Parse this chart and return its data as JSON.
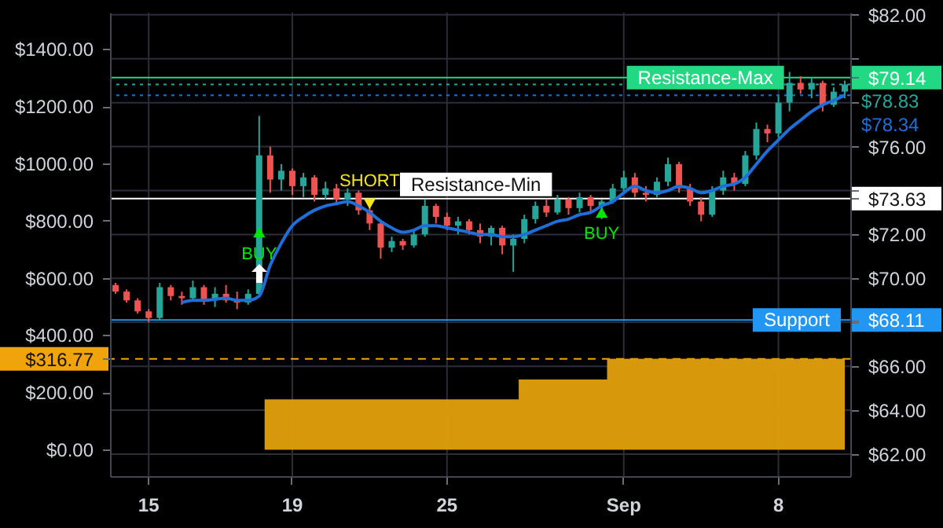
{
  "chart_data": {
    "type": "candlestick",
    "categories": [
      null,
      null,
      null,
      "15",
      null,
      null,
      null,
      null,
      null,
      null,
      null,
      null,
      null,
      null,
      null,
      null,
      "19",
      null,
      null,
      null,
      null,
      null,
      null,
      null,
      null,
      null,
      null,
      null,
      null,
      null,
      "25",
      null,
      null,
      null,
      null,
      null,
      null,
      null,
      null,
      null,
      null,
      null,
      null,
      null,
      null,
      null,
      "Sep",
      null,
      null,
      null,
      null,
      null,
      null,
      null,
      null,
      null,
      null,
      null,
      null,
      null,
      "8",
      null,
      null,
      null,
      null,
      null,
      null
    ],
    "ohlc": [
      [
        69.7,
        69.8,
        69.3,
        69.4
      ],
      [
        69.4,
        69.5,
        68.9,
        69.0
      ],
      [
        69.0,
        69.1,
        68.4,
        68.5
      ],
      [
        68.5,
        68.6,
        68.0,
        68.2
      ],
      [
        68.2,
        69.8,
        68.1,
        69.6
      ],
      [
        69.6,
        69.7,
        69.0,
        69.2
      ],
      [
        69.2,
        69.4,
        68.8,
        69.1
      ],
      [
        69.1,
        69.9,
        69.0,
        69.6
      ],
      [
        69.6,
        69.7,
        68.8,
        69.0
      ],
      [
        69.0,
        69.6,
        68.7,
        69.3
      ],
      [
        69.3,
        69.7,
        68.9,
        69.0
      ],
      [
        69.0,
        69.4,
        68.6,
        68.9
      ],
      [
        68.9,
        69.5,
        68.8,
        69.3
      ],
      [
        69.3,
        77.4,
        69.2,
        75.6
      ],
      [
        75.6,
        76.0,
        73.9,
        74.5
      ],
      [
        74.5,
        75.2,
        74.0,
        74.9
      ],
      [
        74.9,
        75.0,
        73.8,
        74.2
      ],
      [
        74.2,
        74.8,
        73.7,
        74.6
      ],
      [
        74.6,
        74.7,
        73.5,
        73.8
      ],
      [
        73.8,
        74.4,
        73.6,
        74.1
      ],
      [
        74.1,
        74.3,
        73.4,
        73.6
      ],
      [
        73.6,
        74.1,
        73.3,
        73.9
      ],
      [
        73.9,
        74.0,
        72.9,
        73.1
      ],
      [
        73.1,
        73.3,
        72.2,
        72.5
      ],
      [
        72.5,
        72.6,
        70.9,
        71.4
      ],
      [
        71.4,
        71.9,
        71.2,
        71.7
      ],
      [
        71.7,
        71.8,
        71.3,
        71.5
      ],
      [
        71.5,
        72.2,
        71.4,
        72.0
      ],
      [
        72.0,
        73.6,
        71.9,
        73.3
      ],
      [
        73.3,
        73.4,
        72.5,
        72.8
      ],
      [
        72.8,
        73.0,
        72.2,
        72.4
      ],
      [
        72.4,
        72.8,
        72.0,
        72.6
      ],
      [
        72.6,
        72.7,
        72.0,
        72.2
      ],
      [
        72.2,
        72.5,
        71.6,
        71.9
      ],
      [
        71.9,
        72.4,
        71.5,
        72.3
      ],
      [
        72.3,
        72.4,
        71.1,
        71.5
      ],
      [
        71.5,
        72.0,
        70.3,
        71.8
      ],
      [
        71.8,
        72.9,
        71.6,
        72.7
      ],
      [
        72.7,
        73.5,
        72.5,
        73.3
      ],
      [
        73.3,
        73.6,
        72.8,
        73.0
      ],
      [
        73.0,
        73.8,
        72.9,
        73.6
      ],
      [
        73.6,
        73.7,
        72.9,
        73.2
      ],
      [
        73.2,
        73.9,
        73.0,
        73.7
      ],
      [
        73.7,
        73.8,
        73.0,
        73.3
      ],
      [
        73.3,
        73.6,
        72.7,
        73.5
      ],
      [
        73.5,
        74.3,
        73.4,
        74.1
      ],
      [
        74.1,
        74.9,
        73.9,
        74.6
      ],
      [
        74.6,
        74.8,
        73.7,
        73.9
      ],
      [
        73.9,
        74.2,
        73.5,
        73.8
      ],
      [
        73.8,
        74.6,
        73.7,
        74.4
      ],
      [
        74.4,
        75.5,
        74.2,
        75.2
      ],
      [
        75.2,
        75.3,
        73.9,
        74.1
      ],
      [
        74.1,
        74.3,
        73.3,
        73.5
      ],
      [
        73.5,
        73.7,
        72.6,
        72.9
      ],
      [
        72.9,
        74.2,
        72.8,
        74.0
      ],
      [
        74.0,
        74.9,
        73.8,
        74.6
      ],
      [
        74.6,
        74.8,
        74.0,
        74.3
      ],
      [
        74.3,
        75.8,
        74.2,
        75.6
      ],
      [
        75.6,
        77.1,
        75.4,
        76.8
      ],
      [
        76.8,
        77.0,
        76.2,
        76.6
      ],
      [
        76.6,
        78.3,
        76.4,
        78.0
      ],
      [
        78.0,
        79.4,
        77.6,
        78.9
      ],
      [
        78.9,
        79.2,
        78.4,
        78.6
      ],
      [
        78.6,
        79.1,
        78.2,
        78.9
      ],
      [
        78.9,
        79.0,
        77.6,
        77.9
      ],
      [
        77.9,
        78.7,
        77.8,
        78.5
      ],
      [
        78.5,
        79.0,
        78.2,
        78.83
      ]
    ],
    "series": [
      {
        "type": "area",
        "axis": "y2",
        "color": "#d99a0b",
        "values": [
          0,
          0,
          0,
          0,
          0,
          0,
          0,
          0,
          0,
          0,
          0,
          0,
          0,
          0,
          175,
          175,
          175,
          175,
          175,
          175,
          175,
          175,
          175,
          175,
          175,
          175,
          175,
          175,
          175,
          175,
          175,
          175,
          175,
          175,
          175,
          175,
          175,
          245,
          245,
          245,
          245,
          245,
          245,
          245,
          245,
          316.77,
          316.77,
          316.77,
          316.77,
          316.77,
          316.77,
          316.77,
          316.77,
          316.77,
          316.77,
          316.77,
          316.77,
          316.77,
          316.77,
          316.77,
          316.77,
          316.77,
          316.77,
          316.77,
          316.77,
          316.77,
          316.77
        ]
      },
      {
        "type": "line",
        "color": "#1e6fd9",
        "values": [
          null,
          null,
          null,
          null,
          null,
          null,
          68.9,
          69.0,
          69.0,
          69.05,
          69.1,
          69.0,
          69.0,
          69.2,
          70.6,
          71.6,
          72.4,
          72.8,
          73.1,
          73.3,
          73.4,
          73.5,
          73.3,
          73.0,
          72.6,
          72.3,
          72.1,
          72.2,
          72.4,
          72.4,
          72.3,
          72.2,
          72.1,
          72.0,
          72.0,
          71.9,
          71.9,
          72.0,
          72.2,
          72.4,
          72.6,
          72.7,
          72.9,
          73.0,
          73.3,
          73.5,
          73.9,
          74.2,
          74.0,
          73.9,
          74.0,
          74.2,
          74.1,
          73.9,
          74.0,
          74.2,
          74.3,
          74.6,
          75.2,
          75.8,
          76.3,
          76.8,
          77.2,
          77.6,
          77.9,
          78.1,
          78.34
        ]
      },
      {
        "type": "scatter",
        "color": "#00e600",
        "marker": "triangle",
        "values": [
          null,
          null,
          null,
          null,
          null,
          null,
          null,
          null,
          null,
          null,
          null,
          null,
          null,
          72.1,
          null,
          null,
          null,
          null,
          null,
          null,
          null,
          null,
          null,
          null,
          null,
          null,
          null,
          null,
          null,
          null,
          null,
          null,
          null,
          null,
          null,
          null,
          null,
          null,
          null,
          null,
          null,
          null,
          null,
          null,
          73.0,
          null,
          null,
          null,
          null,
          null,
          null,
          null,
          null,
          null,
          null,
          null,
          null,
          null,
          null,
          null,
          null,
          null,
          null,
          null,
          null,
          null,
          null
        ],
        "value_labels": [
          null,
          null,
          null,
          null,
          null,
          null,
          null,
          null,
          null,
          null,
          null,
          null,
          null,
          "BUY",
          null,
          null,
          null,
          null,
          null,
          null,
          null,
          null,
          null,
          null,
          null,
          null,
          null,
          null,
          null,
          null,
          null,
          null,
          null,
          null,
          null,
          null,
          null,
          null,
          null,
          null,
          null,
          null,
          null,
          null,
          "BUY",
          null,
          null,
          null,
          null,
          null,
          null,
          null,
          null,
          null,
          null,
          null,
          null,
          null,
          null,
          null,
          null,
          null,
          null,
          null,
          null,
          null,
          null
        ]
      },
      {
        "type": "scatter",
        "color": "#f5e61b",
        "marker": "triangle",
        "values": [
          null,
          null,
          null,
          null,
          null,
          null,
          null,
          null,
          null,
          null,
          null,
          null,
          null,
          null,
          null,
          null,
          null,
          null,
          null,
          null,
          null,
          null,
          null,
          73.4,
          null,
          null,
          null,
          null,
          null,
          null,
          null,
          null,
          null,
          null,
          null,
          null,
          null,
          null,
          null,
          null,
          null,
          null,
          null,
          null,
          null,
          null,
          null,
          null,
          null,
          null,
          null,
          null,
          null,
          null,
          null,
          null,
          null,
          null,
          null,
          null,
          null,
          null,
          null,
          null,
          null,
          null,
          null
        ],
        "value_labels": [
          null,
          null,
          null,
          null,
          null,
          null,
          null,
          null,
          null,
          null,
          null,
          null,
          null,
          null,
          null,
          null,
          null,
          null,
          null,
          null,
          null,
          null,
          null,
          "SHORT",
          null,
          null,
          null,
          null,
          null,
          null,
          null,
          null,
          null,
          null,
          null,
          null,
          null,
          null,
          null,
          null,
          null,
          null,
          null,
          null,
          null,
          null,
          null,
          null,
          null,
          null,
          null,
          null,
          null,
          null,
          null,
          null,
          null,
          null,
          null,
          null,
          null,
          null,
          null,
          null,
          null,
          null,
          null
        ]
      }
    ],
    "ylim": [
      61,
      82.1
    ],
    "yticks": [
      {
        "value": 62,
        "label": "$62.00"
      },
      {
        "value": 64,
        "label": "$64.00"
      },
      {
        "value": 66,
        "label": "$66.00"
      },
      {
        "value": 68,
        "label": null
      },
      {
        "value": 68.11,
        "label": "$68.11"
      },
      {
        "value": 70,
        "label": "$70.00"
      },
      {
        "value": 72,
        "label": "$72.00"
      },
      {
        "value": 73.63,
        "label": "$73.63"
      },
      {
        "value": 74,
        "label": null
      },
      {
        "value": 76,
        "label": "$76.00"
      },
      {
        "value": 78,
        "label": null
      },
      {
        "value": 79.14,
        "label": "$79.14"
      },
      {
        "value": 80,
        "label": null
      },
      {
        "value": 82,
        "label": "$82.00"
      }
    ],
    "y2lim": [
      -93,
      1527
    ],
    "y2ticks": [
      {
        "value": 0,
        "label": "$0.00"
      },
      {
        "value": 200,
        "label": "$200.00"
      },
      {
        "value": 316.77,
        "label": "$316.77"
      },
      {
        "value": 400,
        "label": "$400.00"
      },
      {
        "value": 600,
        "label": "$600.00"
      },
      {
        "value": 800,
        "label": "$800.00"
      },
      {
        "value": 1000,
        "label": "$1000.00"
      },
      {
        "value": 1200,
        "label": "$1200.00"
      },
      {
        "value": 1400,
        "label": "$1400.00"
      }
    ],
    "ref_lines": [
      {
        "axis": "y",
        "value": 79.14,
        "label": "Resistance-Max",
        "color": "#22d883"
      },
      {
        "axis": "y",
        "value": 78.83,
        "label": "$78.83",
        "color": "#26a69a",
        "line_style": "dotted"
      },
      {
        "axis": "y",
        "value": 78.34,
        "label": "$78.34",
        "color": "#1e6fd9",
        "line_style": "dotted"
      },
      {
        "axis": "y",
        "value": 73.63,
        "label": "Resistance-Min",
        "color": "#ffffff"
      },
      {
        "axis": "y",
        "value": 68.11,
        "label": "Support",
        "color": "#2196f3"
      },
      {
        "axis": "y2",
        "value": 316.77,
        "color": "#f0a30a",
        "line_style": "dashed"
      }
    ],
    "grid": true
  }
}
